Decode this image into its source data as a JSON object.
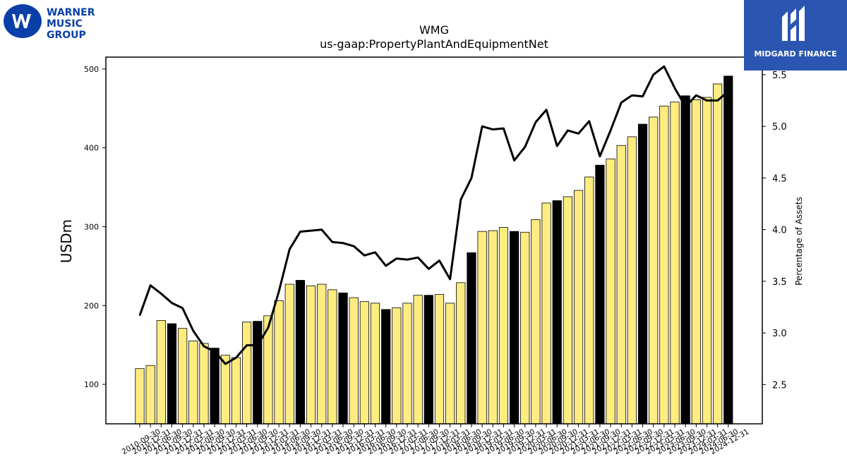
{
  "logos": {
    "left": {
      "lines": [
        "WARNER",
        "MUSIC",
        "GROUP"
      ]
    },
    "right": {
      "text": "MIDGARD FINANCE"
    }
  },
  "colors": {
    "bar_light": "#ffec80",
    "bar_dark": "#000000",
    "line": "#000000"
  },
  "chart_data": {
    "type": "bar",
    "title": "WMG",
    "subtitle": "us-gaap:PropertyPlantAndEquipmentNet",
    "ylabel": "USDm",
    "y2label": "Percentage of Assets",
    "ylim": [
      50,
      515
    ],
    "y2lim": [
      2.12,
      5.67
    ],
    "yticks": [
      100,
      200,
      300,
      400,
      500
    ],
    "y2ticks": [
      "2.5",
      "3.0",
      "3.5",
      "4.0",
      "4.5",
      "5.0",
      "5.5"
    ],
    "categories": [
      "2010-09-30",
      "2010-12-31",
      "2011-06-30",
      "2011-09-30",
      "2011-12-31",
      "2012-03-31",
      "2012-06-30",
      "2012-09-30",
      "2012-12-31",
      "2013-03-31",
      "2013-06-30",
      "2013-09-30",
      "2013-12-31",
      "2014-03-31",
      "2014-06-30",
      "2014-09-30",
      "2014-12-31",
      "2015-03-31",
      "2015-06-30",
      "2015-09-30",
      "2015-12-31",
      "2016-03-31",
      "2016-06-30",
      "2016-09-30",
      "2016-12-31",
      "2017-03-31",
      "2017-06-30",
      "2017-09-30",
      "2017-12-31",
      "2018-03-31",
      "2018-06-30",
      "2018-09-30",
      "2018-12-31",
      "2019-03-31",
      "2019-06-30",
      "2019-09-30",
      "2019-12-31",
      "2020-03-31",
      "2020-06-30",
      "2020-09-30",
      "2020-12-31",
      "2021-03-31",
      "2021-06-30",
      "2021-09-30",
      "2021-12-31",
      "2022-03-31",
      "2022-06-30",
      "2022-09-30",
      "2022-12-31",
      "2023-03-31",
      "2023-06-30",
      "2023-09-30",
      "2023-12-31",
      "2024-03-31",
      "2024-06-30",
      "2024-12-31"
    ],
    "series": [
      {
        "values": [
          120,
          124,
          181,
          177,
          171,
          155,
          152,
          146,
          137,
          134,
          179,
          180,
          187,
          206,
          227,
          232,
          225,
          227,
          220,
          216,
          210,
          205,
          203,
          195,
          197,
          203,
          213,
          213,
          214,
          203,
          229,
          267,
          294,
          295,
          299,
          294,
          293,
          309,
          330,
          333,
          338,
          346,
          363,
          378,
          386,
          403,
          414,
          430,
          439,
          453,
          458,
          466,
          461,
          464,
          481,
          491
        ],
        "dark": [
          0,
          0,
          0,
          1,
          0,
          0,
          0,
          1,
          0,
          0,
          0,
          1,
          0,
          0,
          0,
          1,
          0,
          0,
          0,
          1,
          0,
          0,
          0,
          1,
          0,
          0,
          0,
          1,
          0,
          0,
          0,
          1,
          0,
          0,
          0,
          1,
          0,
          0,
          0,
          1,
          0,
          0,
          0,
          1,
          0,
          0,
          0,
          1,
          0,
          0,
          0,
          1,
          0,
          0,
          0,
          1
        ]
      },
      {
        "axis": "right",
        "type": "line",
        "values": [
          3.17,
          3.46,
          3.38,
          3.29,
          3.24,
          3.02,
          2.87,
          2.82,
          2.7,
          2.76,
          2.88,
          2.88,
          3.05,
          3.4,
          3.81,
          3.98,
          3.99,
          4.0,
          3.88,
          3.87,
          3.84,
          3.75,
          3.78,
          3.65,
          3.72,
          3.71,
          3.73,
          3.62,
          3.7,
          3.52,
          4.29,
          4.5,
          5.0,
          4.97,
          4.98,
          4.67,
          4.8,
          5.04,
          5.16,
          4.81,
          4.96,
          4.93,
          5.05,
          4.71,
          4.96,
          5.23,
          5.3,
          5.29,
          5.5,
          5.58,
          5.37,
          5.19,
          5.3,
          5.25,
          5.25,
          5.34
        ]
      }
    ]
  }
}
